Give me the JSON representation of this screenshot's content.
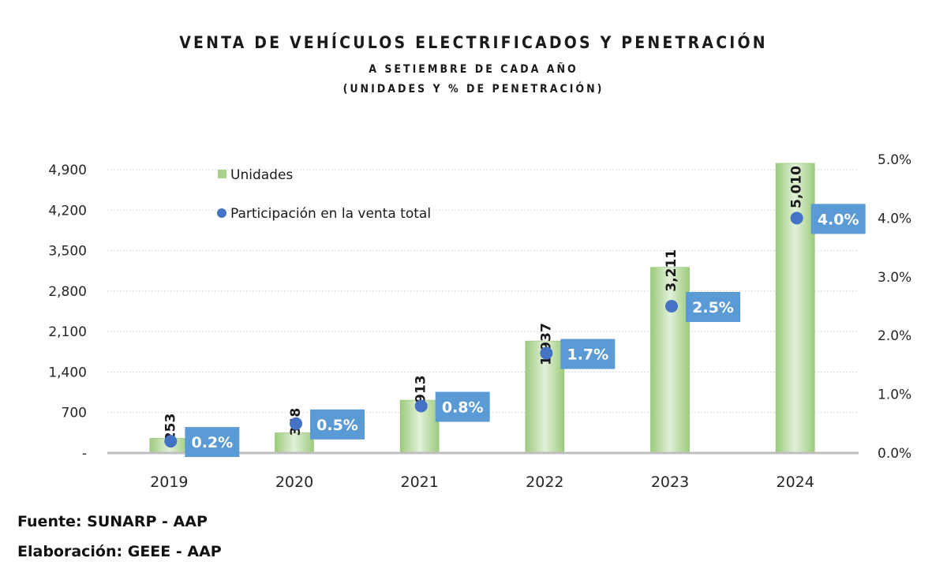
{
  "title": {
    "main": "VENTA DE VEHÍCULOS ELECTRIFICADOS Y PENETRACIÓN",
    "sub1": "A SETIEMBRE DE CADA AÑO",
    "sub2": "(UNIDADES Y % DE PENETRACIÓN)"
  },
  "footer": {
    "source": "Fuente: SUNARP - AAP",
    "elaboration": "Elaboración: GEEE - AAP"
  },
  "colors": {
    "bar": "#A9D18E",
    "bar_edge": "#8CC06A",
    "dot": "#4472C4",
    "label_box": "#5B9BD5",
    "grid": "#D9D9D9",
    "axis": "#BFBFBF"
  },
  "chart_data": {
    "type": "bar",
    "title": "VENTA DE VEHÍCULOS ELECTRIFICADOS Y PENETRACIÓN",
    "subtitle": "A SETIEMBRE DE CADA AÑO (UNIDADES Y % DE PENETRACIÓN)",
    "categories": [
      "2019",
      "2020",
      "2021",
      "2022",
      "2023",
      "2024"
    ],
    "series": [
      {
        "name": "Unidades",
        "type": "bar",
        "axis": "left",
        "values": [
          253,
          348,
          913,
          1937,
          3211,
          5010
        ],
        "labels": [
          "253",
          "348",
          "913",
          "1,937",
          "3,211",
          "5,010"
        ]
      },
      {
        "name": "Participación en la venta total",
        "type": "scatter",
        "axis": "right",
        "values": [
          0.2,
          0.5,
          0.8,
          1.7,
          2.5,
          4.0
        ],
        "labels": [
          "0.2%",
          "0.5%",
          "0.8%",
          "1.7%",
          "2.5%",
          "4.0%"
        ]
      }
    ],
    "y_left": {
      "ylim": [
        0,
        4900
      ],
      "ticks": [
        0,
        700,
        1400,
        2100,
        2800,
        3500,
        4200,
        4900
      ],
      "tick_labels": [
        "-",
        "700",
        "1,400",
        "2,100",
        "2,800",
        "3,500",
        "4,200",
        "4,900"
      ]
    },
    "y_right": {
      "ylim": [
        0,
        5
      ],
      "ticks": [
        0,
        1,
        2,
        3,
        4,
        5
      ],
      "tick_labels": [
        "0.0%",
        "1.0%",
        "2.0%",
        "3.0%",
        "4.0%",
        "5.0%"
      ]
    },
    "xlabel": "",
    "ylabel": "",
    "grid": true,
    "legend": {
      "position": "top-left",
      "entries": [
        "Unidades",
        "Participación en la venta total"
      ]
    }
  }
}
